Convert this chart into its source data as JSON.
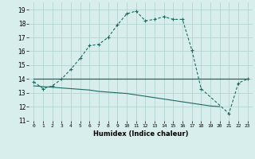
{
  "title": "",
  "xlabel": "Humidex (Indice chaleur)",
  "x_ticks": [
    0,
    1,
    2,
    3,
    4,
    5,
    6,
    7,
    8,
    9,
    10,
    11,
    12,
    13,
    14,
    15,
    16,
    17,
    18,
    19,
    20,
    21,
    22,
    23
  ],
  "xlim": [
    -0.5,
    23.5
  ],
  "ylim": [
    11,
    19.5
  ],
  "y_ticks": [
    11,
    12,
    13,
    14,
    15,
    16,
    17,
    18,
    19
  ],
  "bg_color": "#d8eeec",
  "line_color": "#1a6b62",
  "grid_color": "#aecfcc",
  "line1_x": [
    0,
    1,
    2,
    3,
    4,
    5,
    6,
    7,
    8,
    9,
    10,
    11,
    12,
    13,
    14,
    15,
    16,
    17,
    18,
    21,
    22,
    23
  ],
  "line1_y": [
    13.8,
    13.3,
    13.5,
    14.0,
    14.7,
    15.5,
    16.4,
    16.5,
    17.0,
    17.9,
    18.7,
    18.9,
    18.2,
    18.3,
    18.5,
    18.3,
    18.3,
    16.1,
    13.3,
    11.5,
    13.7,
    14.0
  ],
  "line2_x": [
    0,
    23
  ],
  "line2_y": [
    14.0,
    14.0
  ],
  "line3_x": [
    0,
    1,
    2,
    3,
    4,
    5,
    6,
    7,
    8,
    9,
    10,
    11,
    12,
    13,
    14,
    15,
    16,
    17,
    18,
    19,
    20
  ],
  "line3_y": [
    13.5,
    13.45,
    13.4,
    13.35,
    13.3,
    13.25,
    13.2,
    13.1,
    13.05,
    13.0,
    12.95,
    12.85,
    12.75,
    12.65,
    12.55,
    12.45,
    12.35,
    12.25,
    12.15,
    12.05,
    12.0
  ]
}
